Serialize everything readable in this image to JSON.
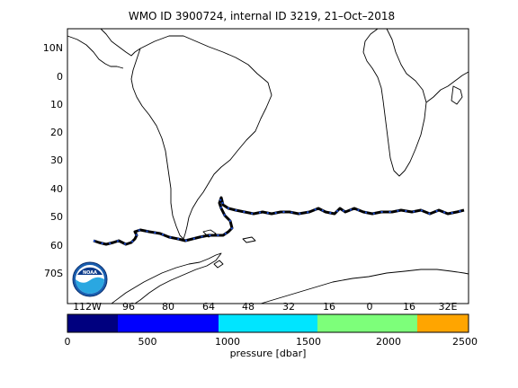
{
  "title": "WMO ID 3900724, internal ID 3219, 21–Oct–2018",
  "logo": {
    "name": "NOAA emblem",
    "text": "NOAA"
  },
  "axes": {
    "lat_labels": [
      "10N",
      "0",
      "10",
      "20",
      "30",
      "40",
      "50",
      "60",
      "70S"
    ],
    "lon_labels": [
      "112W",
      "96",
      "80",
      "64",
      "48",
      "32",
      "16",
      "0",
      "16",
      "32E"
    ]
  },
  "colorbar": {
    "label": "pressure [dbar]",
    "tick_labels": [
      "0",
      "500",
      "1000",
      "1500",
      "2000",
      "2500"
    ],
    "range": [
      0,
      2500
    ],
    "colors": [
      "#00007f",
      "#0000ff",
      "#00e5ff",
      "#7dff7a",
      "#ffa500"
    ],
    "boundaries": [
      0,
      320,
      950,
      1570,
      2190,
      2500
    ]
  },
  "colors": {
    "track": "#000000",
    "track_points": "#1e4fd8",
    "coast": "#000000"
  }
}
